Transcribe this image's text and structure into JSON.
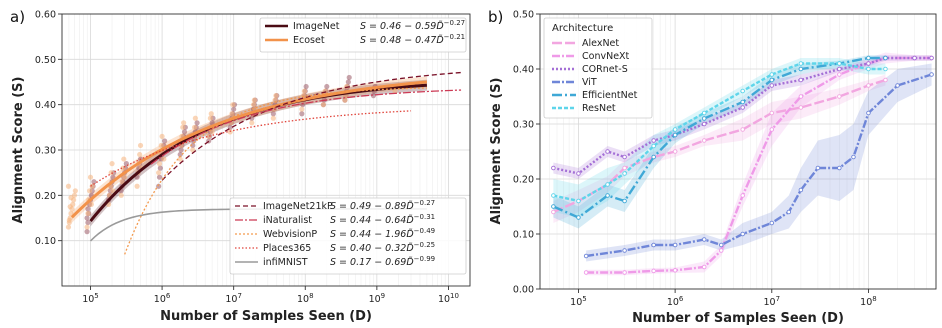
{
  "chart_data": [
    {
      "id": "a",
      "panel_label": "a)",
      "type": "line",
      "xlabel": "Number of Samples Seen (D)",
      "ylabel": "Alignment Score (S)",
      "xscale": "log",
      "xlim": [
        40000,
        20000000000
      ],
      "ylim": [
        0.0,
        0.6
      ],
      "xtick_labels": [
        {
          "value": 100000,
          "base": "10",
          "exp": "5"
        },
        {
          "value": 1000000,
          "base": "10",
          "exp": "6"
        },
        {
          "value": 10000000,
          "base": "10",
          "exp": "7"
        },
        {
          "value": 100000000,
          "base": "10",
          "exp": "8"
        },
        {
          "value": 1000000000,
          "base": "10",
          "exp": "9"
        },
        {
          "value": 10000000000,
          "base": "10",
          "exp": "10"
        }
      ],
      "yticks": [
        0.1,
        0.2,
        0.3,
        0.4,
        0.5,
        0.6
      ],
      "ytick_labels": [
        "0.10",
        "0.20",
        "0.30",
        "0.40",
        "0.50",
        "0.60"
      ],
      "grid": true,
      "series": [
        {
          "key": "imagenet",
          "name": "ImageNet",
          "formula": "S = 0.46 − 0.59D̃^−0.27",
          "color": "#4a0b14",
          "width": 3,
          "dash": "",
          "S0": 0.46,
          "A": 0.59,
          "alpha": 0.27,
          "xrange": [
            100000,
            5000000000
          ],
          "band": true,
          "legend": "top"
        },
        {
          "key": "ecoset",
          "name": "Ecoset",
          "formula": "S = 0.48 − 0.47D̃^−0.21",
          "color": "#f2924a",
          "width": 3,
          "dash": "",
          "S0": 0.48,
          "A": 0.47,
          "alpha": 0.21,
          "xrange": [
            55000,
            5000000000
          ],
          "band": true,
          "legend": "top"
        },
        {
          "key": "imagenet21k",
          "name": "ImageNet21kP",
          "formula": "S = 0.49 − 0.89D̃^−0.27",
          "color": "#7a1128",
          "width": 1.3,
          "dash": "5,3",
          "S0": 0.49,
          "A": 0.89,
          "alpha": 0.27,
          "xrange": [
            1000000,
            15000000000
          ],
          "band": false,
          "legend": "bottom"
        },
        {
          "key": "inaturalist",
          "name": "iNaturalist",
          "formula": "S = 0.44 − 0.64D̃^−0.31",
          "color": "#cc3a55",
          "width": 1.3,
          "dash": "8,2,2,2",
          "S0": 0.44,
          "A": 0.64,
          "alpha": 0.31,
          "xrange": [
            700000,
            15000000000
          ],
          "band": false,
          "legend": "bottom"
        },
        {
          "key": "webvision",
          "name": "WebvisionP",
          "formula": "S = 0.44 − 1.96D̃^−0.49",
          "color": "#f39a4e",
          "width": 1.3,
          "dash": "2,2",
          "S0": 0.44,
          "A": 1.96,
          "alpha": 0.49,
          "xrange": [
            300000,
            5000000000
          ],
          "band": false,
          "legend": "bottom"
        },
        {
          "key": "places365",
          "name": "Places365",
          "formula": "S = 0.40 − 0.32D̃^−0.25",
          "color": "#e0453c",
          "width": 1.3,
          "dash": "1.5,2",
          "S0": 0.4,
          "A": 0.32,
          "alpha": 0.25,
          "xrange": [
            100000,
            3000000000
          ],
          "band": false,
          "legend": "bottom"
        },
        {
          "key": "infimnist",
          "name": "infiMNIST",
          "formula": "S = 0.17 − 0.69D̃^−0.99",
          "color": "#9a9a9a",
          "width": 1.6,
          "dash": "",
          "S0": 0.17,
          "A": 0.69,
          "alpha": 0.99,
          "xrange": [
            100000,
            5000000000
          ],
          "band": false,
          "legend": "bottom"
        }
      ],
      "scatter_clusters": [
        {
          "x": 55000,
          "color": "#f6b27c",
          "ys": [
            0.13,
            0.14,
            0.15,
            0.16,
            0.17,
            0.18,
            0.19,
            0.2,
            0.21,
            0.22,
            0.145,
            0.175,
            0.195
          ]
        },
        {
          "x": 100000,
          "color": "#9b5a66",
          "ys": [
            0.12,
            0.14,
            0.16,
            0.18,
            0.19,
            0.2,
            0.21,
            0.22,
            0.23,
            0.15,
            0.17
          ]
        },
        {
          "x": 100000,
          "color": "#f6b27c",
          "ys": [
            0.13,
            0.16,
            0.19,
            0.21,
            0.24,
            0.18,
            0.22
          ]
        },
        {
          "x": 200000,
          "color": "#9b5a66",
          "ys": [
            0.19,
            0.2,
            0.21,
            0.22,
            0.23,
            0.24,
            0.25
          ]
        },
        {
          "x": 200000,
          "color": "#f6b27c",
          "ys": [
            0.18,
            0.2,
            0.22,
            0.25,
            0.27,
            0.21
          ]
        },
        {
          "x": 300000,
          "color": "#9b5a66",
          "ys": [
            0.21,
            0.22,
            0.23,
            0.24,
            0.25,
            0.26,
            0.27
          ]
        },
        {
          "x": 300000,
          "color": "#f6b27c",
          "ys": [
            0.2,
            0.23,
            0.26,
            0.28,
            0.24
          ]
        },
        {
          "x": 500000,
          "color": "#9b5a66",
          "ys": [
            0.24,
            0.25,
            0.26,
            0.27,
            0.28
          ]
        },
        {
          "x": 500000,
          "color": "#f6b27c",
          "ys": [
            0.22,
            0.25,
            0.27,
            0.29,
            0.31,
            0.26
          ]
        },
        {
          "x": 1000000,
          "color": "#9b5a66",
          "ys": [
            0.22,
            0.24,
            0.26,
            0.28,
            0.29,
            0.3,
            0.31,
            0.32
          ]
        },
        {
          "x": 1000000,
          "color": "#f6b27c",
          "ys": [
            0.25,
            0.27,
            0.29,
            0.31,
            0.33,
            0.3,
            0.28
          ]
        },
        {
          "x": 2000000,
          "color": "#9b5a66",
          "ys": [
            0.29,
            0.3,
            0.31,
            0.32,
            0.33,
            0.34,
            0.35
          ]
        },
        {
          "x": 2000000,
          "color": "#f6b27c",
          "ys": [
            0.28,
            0.31,
            0.33,
            0.35,
            0.36,
            0.32
          ]
        },
        {
          "x": 3000000,
          "color": "#9b5a66",
          "ys": [
            0.31,
            0.32,
            0.33,
            0.34,
            0.35,
            0.36
          ]
        },
        {
          "x": 3000000,
          "color": "#f6b27c",
          "ys": [
            0.3,
            0.33,
            0.35,
            0.37
          ]
        },
        {
          "x": 5000000,
          "color": "#9b5a66",
          "ys": [
            0.32,
            0.33,
            0.34,
            0.35,
            0.36,
            0.37
          ]
        },
        {
          "x": 5000000,
          "color": "#f6b27c",
          "ys": [
            0.33,
            0.35,
            0.37,
            0.38,
            0.34
          ]
        },
        {
          "x": 10000000,
          "color": "#9b5a66",
          "ys": [
            0.35,
            0.36,
            0.37,
            0.38,
            0.39,
            0.4
          ]
        },
        {
          "x": 10000000,
          "color": "#f6b27c",
          "ys": [
            0.34,
            0.36,
            0.38,
            0.4,
            0.37
          ]
        },
        {
          "x": 20000000,
          "color": "#9b5a66",
          "ys": [
            0.37,
            0.38,
            0.39,
            0.4,
            0.41
          ]
        },
        {
          "x": 20000000,
          "color": "#f6b27c",
          "ys": [
            0.36,
            0.38,
            0.4,
            0.41,
            0.39
          ]
        },
        {
          "x": 40000000,
          "color": "#9b5a66",
          "ys": [
            0.38,
            0.39,
            0.4,
            0.41,
            0.42
          ]
        },
        {
          "x": 40000000,
          "color": "#f6b27c",
          "ys": [
            0.37,
            0.39,
            0.41,
            0.42
          ]
        },
        {
          "x": 100000000,
          "color": "#9b5a66",
          "ys": [
            0.38,
            0.4,
            0.41,
            0.42,
            0.43,
            0.44
          ]
        },
        {
          "x": 100000000,
          "color": "#f6b27c",
          "ys": [
            0.39,
            0.41,
            0.42,
            0.43
          ]
        },
        {
          "x": 200000000,
          "color": "#9b5a66",
          "ys": [
            0.4,
            0.41,
            0.42,
            0.43,
            0.44
          ]
        },
        {
          "x": 200000000,
          "color": "#f6b27c",
          "ys": [
            0.4,
            0.42,
            0.43
          ]
        },
        {
          "x": 400000000,
          "color": "#9b5a66",
          "ys": [
            0.41,
            0.42,
            0.43,
            0.44,
            0.45,
            0.46
          ]
        },
        {
          "x": 400000000,
          "color": "#f6b27c",
          "ys": [
            0.41,
            0.42,
            0.44
          ]
        },
        {
          "x": 1000000000,
          "color": "#9b5a66",
          "ys": [
            0.42,
            0.43,
            0.44
          ]
        },
        {
          "x": 2000000000,
          "color": "#f6b27c",
          "ys": [
            0.43,
            0.44
          ]
        }
      ]
    },
    {
      "id": "b",
      "panel_label": "b)",
      "type": "line",
      "xlabel": "Number of Samples Seen (D)",
      "ylabel": "Alignment Score (S)",
      "xscale": "log",
      "xlim": [
        40000,
        500000000
      ],
      "ylim": [
        0.0,
        0.5
      ],
      "xtick_labels": [
        {
          "value": 100000,
          "base": "10",
          "exp": "5"
        },
        {
          "value": 1000000,
          "base": "10",
          "exp": "6"
        },
        {
          "value": 10000000,
          "base": "10",
          "exp": "7"
        },
        {
          "value": 100000000,
          "base": "10",
          "exp": "8"
        }
      ],
      "yticks": [
        0.0,
        0.1,
        0.2,
        0.3,
        0.4,
        0.5
      ],
      "ytick_labels": [
        "0.00",
        "0.10",
        "0.20",
        "0.30",
        "0.40",
        "0.50"
      ],
      "grid": true,
      "legend_title": "Architecture",
      "series": [
        {
          "name": "AlexNet",
          "color": "#f2a6e0",
          "dash": "10,3",
          "marker": true,
          "x": [
            55000,
            100000,
            200000,
            300000,
            600000,
            1000000,
            2000000,
            5000000,
            10000000,
            20000000,
            50000000,
            100000000,
            150000000
          ],
          "y": [
            0.14,
            0.16,
            0.19,
            0.22,
            0.24,
            0.25,
            0.27,
            0.29,
            0.32,
            0.33,
            0.35,
            0.37,
            0.38
          ],
          "band": [
            0.02,
            0.02,
            0.015,
            0.015,
            0.01,
            0.01,
            0.01,
            0.02,
            0.02,
            0.02,
            0.015,
            0.01,
            0.01
          ]
        },
        {
          "name": "ConvNeXt",
          "color": "#ef9ae8",
          "dash": "8,2,2,2",
          "marker": true,
          "x": [
            120000,
            300000,
            600000,
            1000000,
            2000000,
            3000000,
            5000000,
            10000000,
            20000000,
            50000000,
            100000000,
            150000000,
            300000000,
            450000000
          ],
          "y": [
            0.03,
            0.03,
            0.033,
            0.034,
            0.04,
            0.07,
            0.17,
            0.29,
            0.35,
            0.39,
            0.41,
            0.42,
            0.42,
            0.42
          ],
          "band": [
            0.005,
            0.005,
            0.005,
            0.005,
            0.01,
            0.01,
            0.02,
            0.03,
            0.02,
            0.01,
            0.01,
            0.01,
            0.005,
            0.005
          ]
        },
        {
          "name": "CORnet-S",
          "color": "#a46fd6",
          "dash": "2,2",
          "marker": true,
          "x": [
            55000,
            100000,
            200000,
            300000,
            600000,
            1000000,
            2000000,
            5000000,
            10000000,
            20000000,
            50000000,
            100000000,
            150000000,
            300000000,
            450000000
          ],
          "y": [
            0.22,
            0.21,
            0.25,
            0.24,
            0.27,
            0.28,
            0.3,
            0.33,
            0.37,
            0.38,
            0.4,
            0.41,
            0.42,
            0.42,
            0.42
          ],
          "band": [
            0.01,
            0.01,
            0.01,
            0.01,
            0.01,
            0.01,
            0.01,
            0.01,
            0.01,
            0.01,
            0.005,
            0.005,
            0.005,
            0.005,
            0.005
          ]
        },
        {
          "name": "ViT",
          "color": "#6f86d8",
          "dash": "8,2,2,2",
          "marker": true,
          "x": [
            120000,
            300000,
            600000,
            1000000,
            2000000,
            3000000,
            5000000,
            10000000,
            15000000,
            20000000,
            30000000,
            50000000,
            70000000,
            100000000,
            200000000,
            450000000
          ],
          "y": [
            0.06,
            0.07,
            0.08,
            0.08,
            0.09,
            0.08,
            0.1,
            0.12,
            0.14,
            0.18,
            0.22,
            0.22,
            0.24,
            0.32,
            0.37,
            0.39
          ],
          "band": [
            0.01,
            0.01,
            0.01,
            0.01,
            0.01,
            0.01,
            0.02,
            0.02,
            0.03,
            0.04,
            0.05,
            0.06,
            0.06,
            0.04,
            0.03,
            0.02
          ]
        },
        {
          "name": "EfficientNet",
          "color": "#3fa8d6",
          "dash": "10,3,2,3",
          "marker": true,
          "x": [
            55000,
            100000,
            200000,
            300000,
            600000,
            1000000,
            2000000,
            5000000,
            10000000,
            20000000,
            50000000,
            100000000,
            150000000
          ],
          "y": [
            0.15,
            0.13,
            0.17,
            0.16,
            0.24,
            0.28,
            0.31,
            0.34,
            0.38,
            0.4,
            0.41,
            0.42,
            0.42
          ],
          "band": [
            0.02,
            0.02,
            0.02,
            0.02,
            0.02,
            0.015,
            0.01,
            0.01,
            0.01,
            0.01,
            0.005,
            0.005,
            0.005
          ]
        },
        {
          "name": "ResNet",
          "color": "#5ed5ea",
          "dash": "4,2",
          "marker": true,
          "x": [
            55000,
            100000,
            200000,
            300000,
            600000,
            1000000,
            2000000,
            5000000,
            10000000,
            20000000,
            50000000,
            100000000,
            150000000
          ],
          "y": [
            0.17,
            0.16,
            0.19,
            0.21,
            0.26,
            0.29,
            0.32,
            0.36,
            0.39,
            0.41,
            0.41,
            0.4,
            0.4
          ],
          "band": [
            0.03,
            0.03,
            0.03,
            0.02,
            0.02,
            0.01,
            0.01,
            0.01,
            0.01,
            0.01,
            0.01,
            0.01,
            0.01
          ]
        }
      ]
    }
  ]
}
